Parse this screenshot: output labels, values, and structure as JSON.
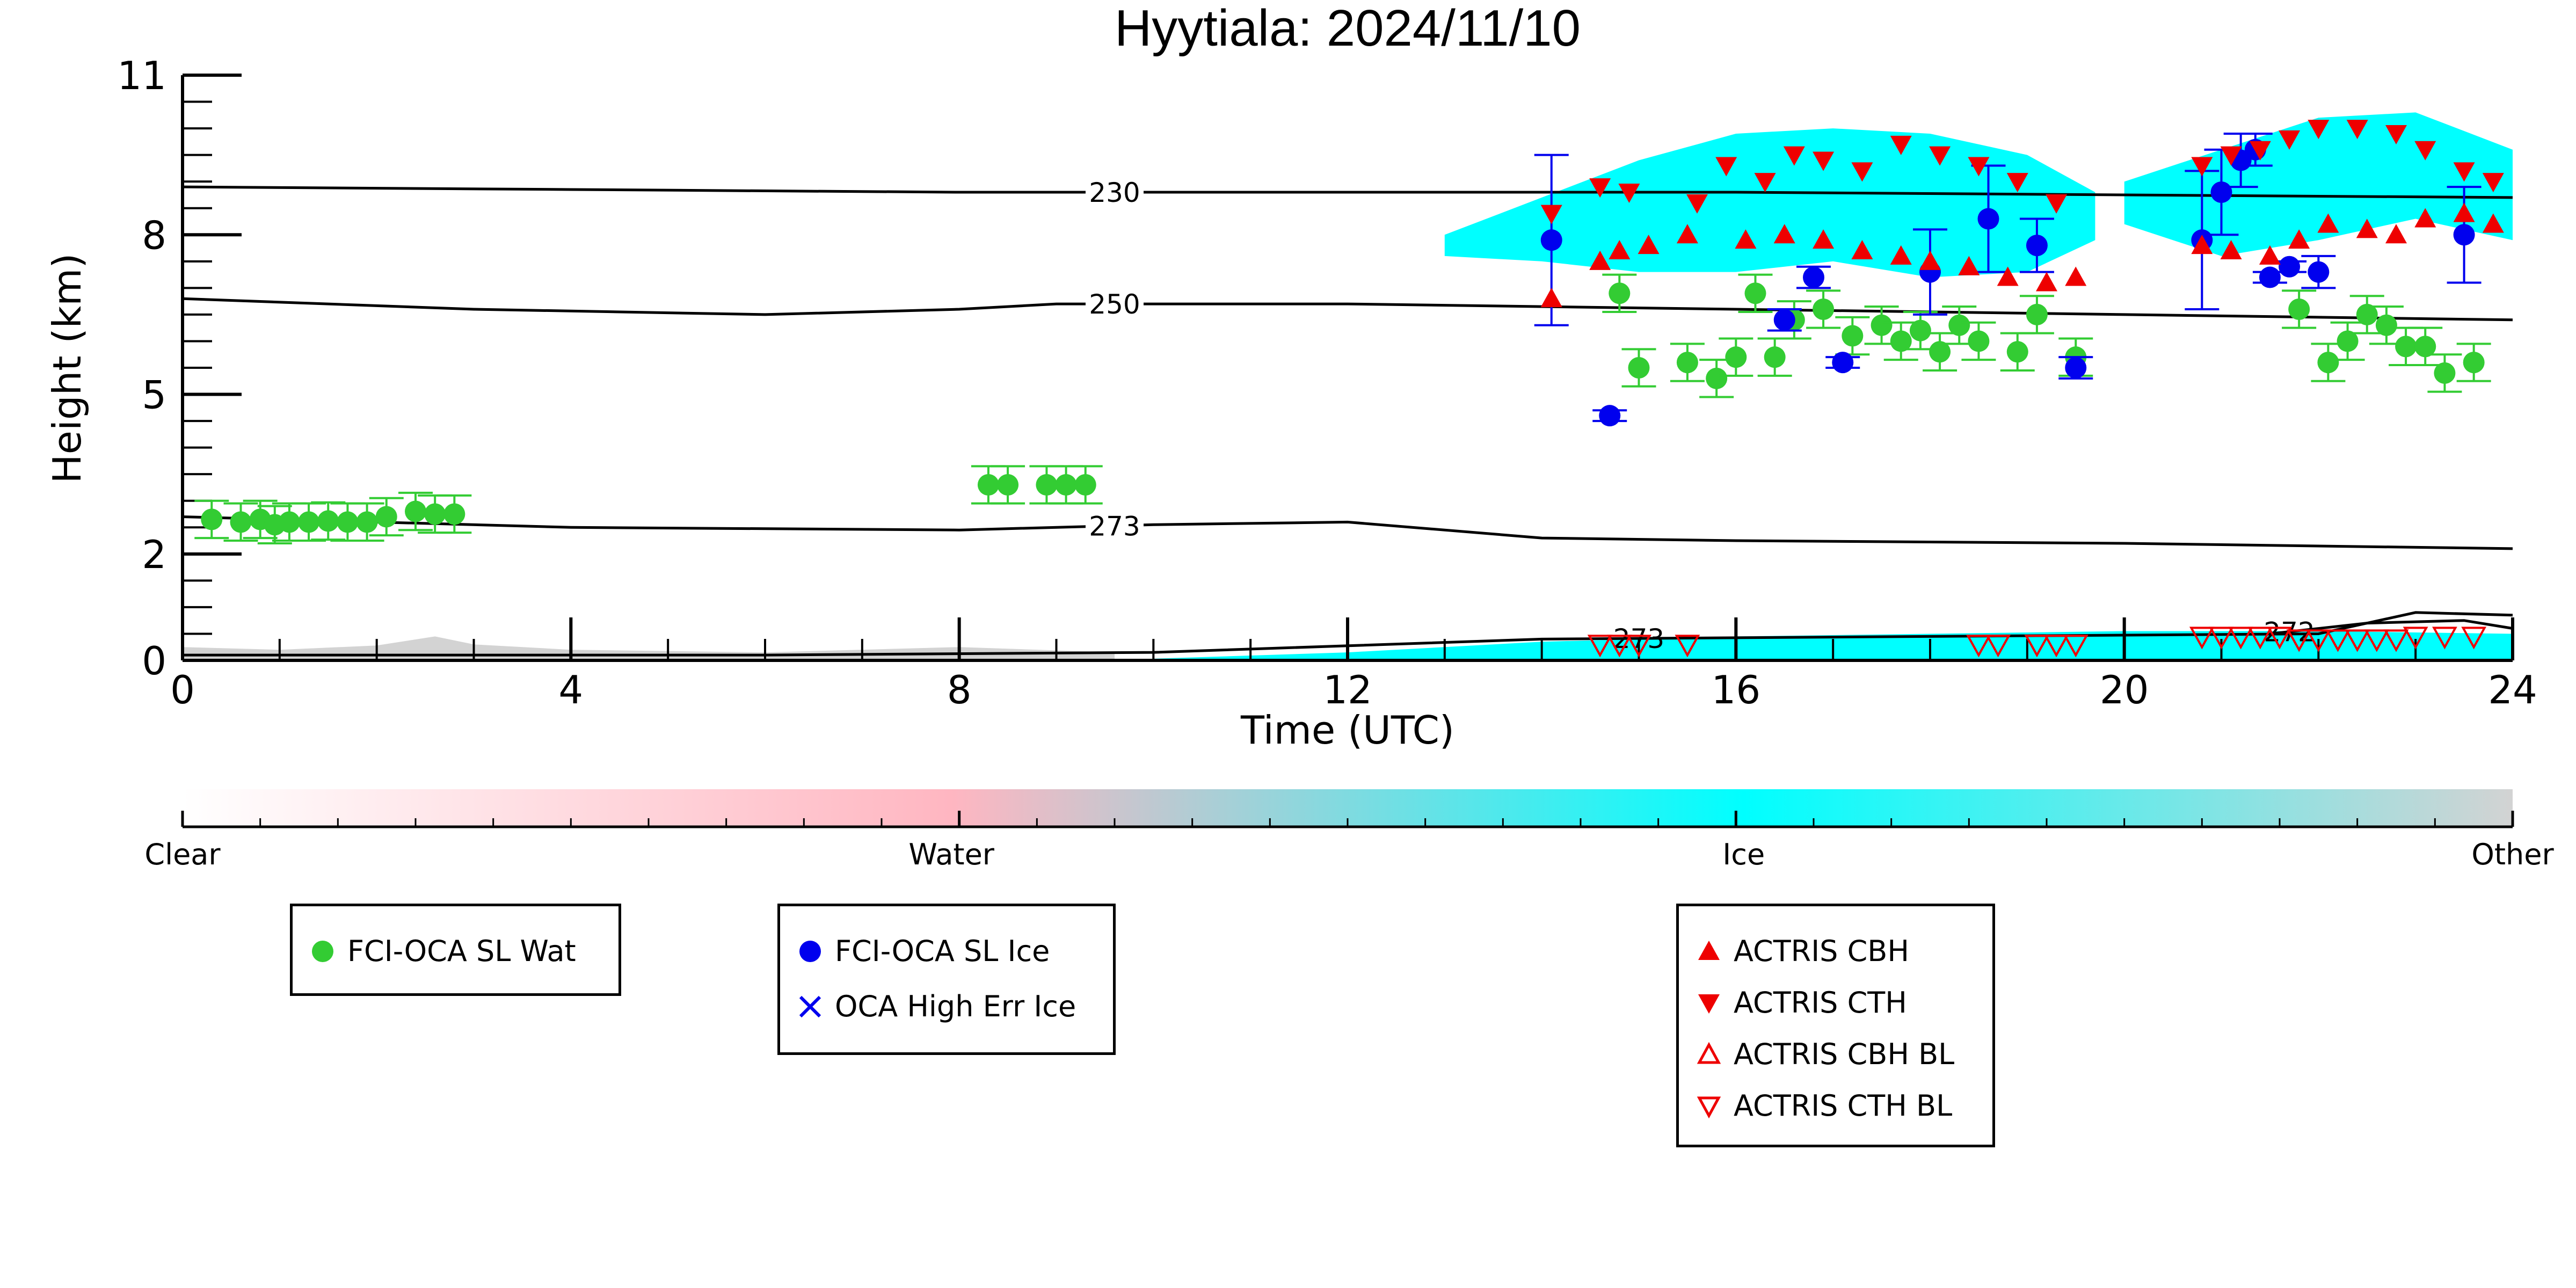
{
  "chart_data": {
    "type": "scatter",
    "title": "Hyytiala: 2024/11/10",
    "xlabel": "Time (UTC)",
    "ylabel": "Height (km)",
    "xlim": [
      0,
      24
    ],
    "ylim": [
      0,
      11
    ],
    "xticks": [
      0,
      4,
      8,
      12,
      16,
      20,
      24
    ],
    "yticks": [
      0,
      2,
      5,
      8,
      11
    ],
    "isotherms": [
      {
        "label": "230",
        "x": [
          0,
          4,
          8,
          12,
          16,
          20,
          24
        ],
        "y": [
          8.9,
          8.85,
          8.8,
          8.8,
          8.8,
          8.75,
          8.7
        ]
      },
      {
        "label": "250",
        "x": [
          0,
          3,
          6,
          8,
          9,
          12,
          16,
          20,
          24
        ],
        "y": [
          6.8,
          6.6,
          6.5,
          6.6,
          6.7,
          6.7,
          6.6,
          6.5,
          6.4
        ]
      },
      {
        "label": "273",
        "x": [
          0,
          4,
          8,
          10,
          12,
          14,
          16,
          20,
          24
        ],
        "y": [
          2.7,
          2.5,
          2.45,
          2.55,
          2.6,
          2.3,
          2.25,
          2.2,
          2.1
        ]
      },
      {
        "label": "273",
        "x": [
          0,
          6,
          10,
          14,
          18,
          22,
          23,
          24
        ],
        "y": [
          0.1,
          0.1,
          0.15,
          0.4,
          0.45,
          0.5,
          0.9,
          0.85
        ]
      },
      {
        "label": "272",
        "x": [
          21.5,
          22.5,
          23.5,
          24
        ],
        "y": [
          0.5,
          0.7,
          0.75,
          0.6
        ]
      }
    ],
    "ice_regions": [
      {
        "x": [
          13.0,
          14.0,
          15.0,
          16.0,
          17.0,
          18.0,
          19.0,
          19.7,
          19.7,
          19.0,
          18.0,
          17.0,
          16.0,
          15.0,
          14.0,
          13.0
        ],
        "y": [
          8.0,
          8.7,
          9.4,
          9.9,
          10.0,
          9.9,
          9.5,
          8.8,
          7.9,
          7.3,
          7.2,
          7.5,
          7.3,
          7.3,
          7.5,
          7.6
        ]
      },
      {
        "x": [
          20.0,
          21.0,
          22.0,
          23.0,
          24.0,
          24.0,
          23.0,
          22.0,
          21.0,
          20.0
        ],
        "y": [
          9.0,
          9.6,
          10.2,
          10.3,
          9.6,
          7.9,
          8.3,
          7.9,
          7.6,
          8.2
        ]
      },
      {
        "x": [
          9.8,
          12,
          14,
          16,
          18,
          20,
          22,
          24,
          24,
          9.8
        ],
        "y": [
          0.02,
          0.15,
          0.35,
          0.45,
          0.5,
          0.55,
          0.55,
          0.5,
          0.0,
          0.0
        ]
      }
    ],
    "other_regions": [
      {
        "x": [
          0,
          1,
          2,
          2.6,
          3,
          4,
          6,
          8,
          9.6,
          9.6,
          0
        ],
        "y": [
          0.25,
          0.2,
          0.28,
          0.45,
          0.3,
          0.2,
          0.15,
          0.25,
          0.15,
          0.0,
          0.0
        ]
      }
    ],
    "series": [
      {
        "name": "FCI-OCA SL Wat",
        "marker": "circle",
        "color": "#33cc33",
        "points": [
          [
            0.3,
            2.65
          ],
          [
            0.6,
            2.6
          ],
          [
            0.8,
            2.65
          ],
          [
            0.95,
            2.55
          ],
          [
            1.1,
            2.6
          ],
          [
            1.3,
            2.6
          ],
          [
            1.5,
            2.62
          ],
          [
            1.7,
            2.6
          ],
          [
            1.9,
            2.6
          ],
          [
            2.1,
            2.7
          ],
          [
            2.4,
            2.8
          ],
          [
            2.6,
            2.75
          ],
          [
            2.8,
            2.75
          ],
          [
            8.3,
            3.3
          ],
          [
            8.5,
            3.3
          ],
          [
            8.9,
            3.3
          ],
          [
            9.1,
            3.3
          ],
          [
            9.3,
            3.3
          ],
          [
            14.8,
            6.9
          ],
          [
            15.0,
            5.5
          ],
          [
            15.5,
            5.6
          ],
          [
            15.8,
            5.3
          ],
          [
            16.0,
            5.7
          ],
          [
            16.2,
            6.9
          ],
          [
            16.4,
            5.7
          ],
          [
            16.6,
            6.4
          ],
          [
            16.9,
            6.6
          ],
          [
            17.2,
            6.1
          ],
          [
            17.5,
            6.3
          ],
          [
            17.7,
            6.0
          ],
          [
            17.9,
            6.2
          ],
          [
            18.1,
            5.8
          ],
          [
            18.3,
            6.3
          ],
          [
            18.5,
            6.0
          ],
          [
            18.9,
            5.8
          ],
          [
            19.1,
            6.5
          ],
          [
            19.5,
            5.7
          ],
          [
            21.8,
            6.6
          ],
          [
            22.1,
            5.6
          ],
          [
            22.3,
            6.0
          ],
          [
            22.5,
            6.5
          ],
          [
            22.7,
            6.3
          ],
          [
            22.9,
            5.9
          ],
          [
            23.1,
            5.9
          ],
          [
            23.3,
            5.4
          ],
          [
            23.6,
            5.6
          ]
        ]
      },
      {
        "name": "FCI-OCA SL Ice",
        "marker": "circle",
        "color": "#0000ee",
        "points": [
          [
            14.1,
            7.9,
            1.6
          ],
          [
            14.7,
            4.6,
            0.1
          ],
          [
            16.5,
            6.4,
            0.2
          ],
          [
            16.8,
            7.2,
            0.2
          ],
          [
            17.1,
            5.6,
            0.1
          ],
          [
            18.0,
            7.3,
            0.8
          ],
          [
            18.6,
            8.3,
            1.0
          ],
          [
            19.1,
            7.8,
            0.5
          ],
          [
            19.5,
            5.5,
            0.2
          ],
          [
            20.8,
            7.9,
            1.3
          ],
          [
            21.0,
            8.8,
            0.8
          ],
          [
            21.2,
            9.4,
            0.5
          ],
          [
            21.35,
            9.6,
            0.3
          ],
          [
            21.5,
            7.2,
            0.1
          ],
          [
            21.7,
            7.4,
            0.1
          ],
          [
            22.0,
            7.3,
            0.3
          ],
          [
            23.5,
            8.0,
            0.9
          ]
        ]
      },
      {
        "name": "ACTRIS CBH",
        "marker": "triangle-up",
        "color": "#ee0000",
        "points": [
          [
            14.1,
            6.8
          ],
          [
            14.6,
            7.5
          ],
          [
            14.8,
            7.7
          ],
          [
            15.1,
            7.8
          ],
          [
            15.5,
            8.0
          ],
          [
            16.1,
            7.9
          ],
          [
            16.5,
            8.0
          ],
          [
            16.9,
            7.9
          ],
          [
            17.3,
            7.7
          ],
          [
            17.7,
            7.6
          ],
          [
            18.0,
            7.5
          ],
          [
            18.4,
            7.4
          ],
          [
            18.8,
            7.2
          ],
          [
            19.2,
            7.1
          ],
          [
            19.5,
            7.2
          ],
          [
            20.8,
            7.8
          ],
          [
            21.1,
            7.7
          ],
          [
            21.5,
            7.6
          ],
          [
            21.8,
            7.9
          ],
          [
            22.1,
            8.2
          ],
          [
            22.5,
            8.1
          ],
          [
            22.8,
            8.0
          ],
          [
            23.1,
            8.3
          ],
          [
            23.5,
            8.4
          ],
          [
            23.8,
            8.2
          ]
        ]
      },
      {
        "name": "ACTRIS CTH",
        "marker": "triangle-down",
        "color": "#ee0000",
        "points": [
          [
            14.1,
            8.4
          ],
          [
            14.6,
            8.9
          ],
          [
            14.9,
            8.8
          ],
          [
            15.6,
            8.6
          ],
          [
            15.9,
            9.3
          ],
          [
            16.3,
            9.0
          ],
          [
            16.6,
            9.5
          ],
          [
            16.9,
            9.4
          ],
          [
            17.3,
            9.2
          ],
          [
            17.7,
            9.7
          ],
          [
            18.1,
            9.5
          ],
          [
            18.5,
            9.3
          ],
          [
            18.9,
            9.0
          ],
          [
            19.3,
            8.6
          ],
          [
            20.8,
            9.3
          ],
          [
            21.1,
            9.5
          ],
          [
            21.4,
            9.6
          ],
          [
            21.7,
            9.8
          ],
          [
            22.0,
            10.0
          ],
          [
            22.4,
            10.0
          ],
          [
            22.8,
            9.9
          ],
          [
            23.1,
            9.6
          ],
          [
            23.5,
            9.2
          ],
          [
            23.8,
            9.0
          ]
        ]
      },
      {
        "name": "ACTRIS CBH BL",
        "marker": "triangle-up-open",
        "color": "#ee0000",
        "points": []
      },
      {
        "name": "ACTRIS CTH BL",
        "marker": "triangle-down-open",
        "color": "#ee0000",
        "points": [
          [
            14.6,
            0.3
          ],
          [
            14.8,
            0.3
          ],
          [
            15.0,
            0.3
          ],
          [
            15.5,
            0.3
          ],
          [
            18.5,
            0.3
          ],
          [
            18.7,
            0.3
          ],
          [
            19.1,
            0.3
          ],
          [
            19.3,
            0.3
          ],
          [
            19.5,
            0.3
          ],
          [
            20.8,
            0.45
          ],
          [
            21.0,
            0.45
          ],
          [
            21.2,
            0.45
          ],
          [
            21.4,
            0.45
          ],
          [
            21.6,
            0.45
          ],
          [
            21.8,
            0.4
          ],
          [
            22.0,
            0.4
          ],
          [
            22.2,
            0.4
          ],
          [
            22.4,
            0.4
          ],
          [
            22.6,
            0.4
          ],
          [
            22.8,
            0.4
          ],
          [
            23.0,
            0.45
          ],
          [
            23.3,
            0.45
          ],
          [
            23.6,
            0.45
          ]
        ]
      },
      {
        "name": "OCA High Err Ice",
        "marker": "x",
        "color": "#0000ee",
        "points": []
      }
    ],
    "colorbar": {
      "labels": [
        "Clear",
        "Water",
        "Ice",
        "Other"
      ],
      "colors": [
        "#ffffff",
        "#ffb6c1",
        "#00ffff",
        "#d3d3d3"
      ]
    },
    "legends": [
      {
        "entries": [
          "FCI-OCA SL Wat"
        ]
      },
      {
        "entries": [
          "FCI-OCA SL Ice",
          "OCA High Err Ice"
        ]
      },
      {
        "entries": [
          "ACTRIS CBH",
          "ACTRIS CTH",
          "ACTRIS CBH BL",
          "ACTRIS CTH BL"
        ]
      }
    ]
  }
}
